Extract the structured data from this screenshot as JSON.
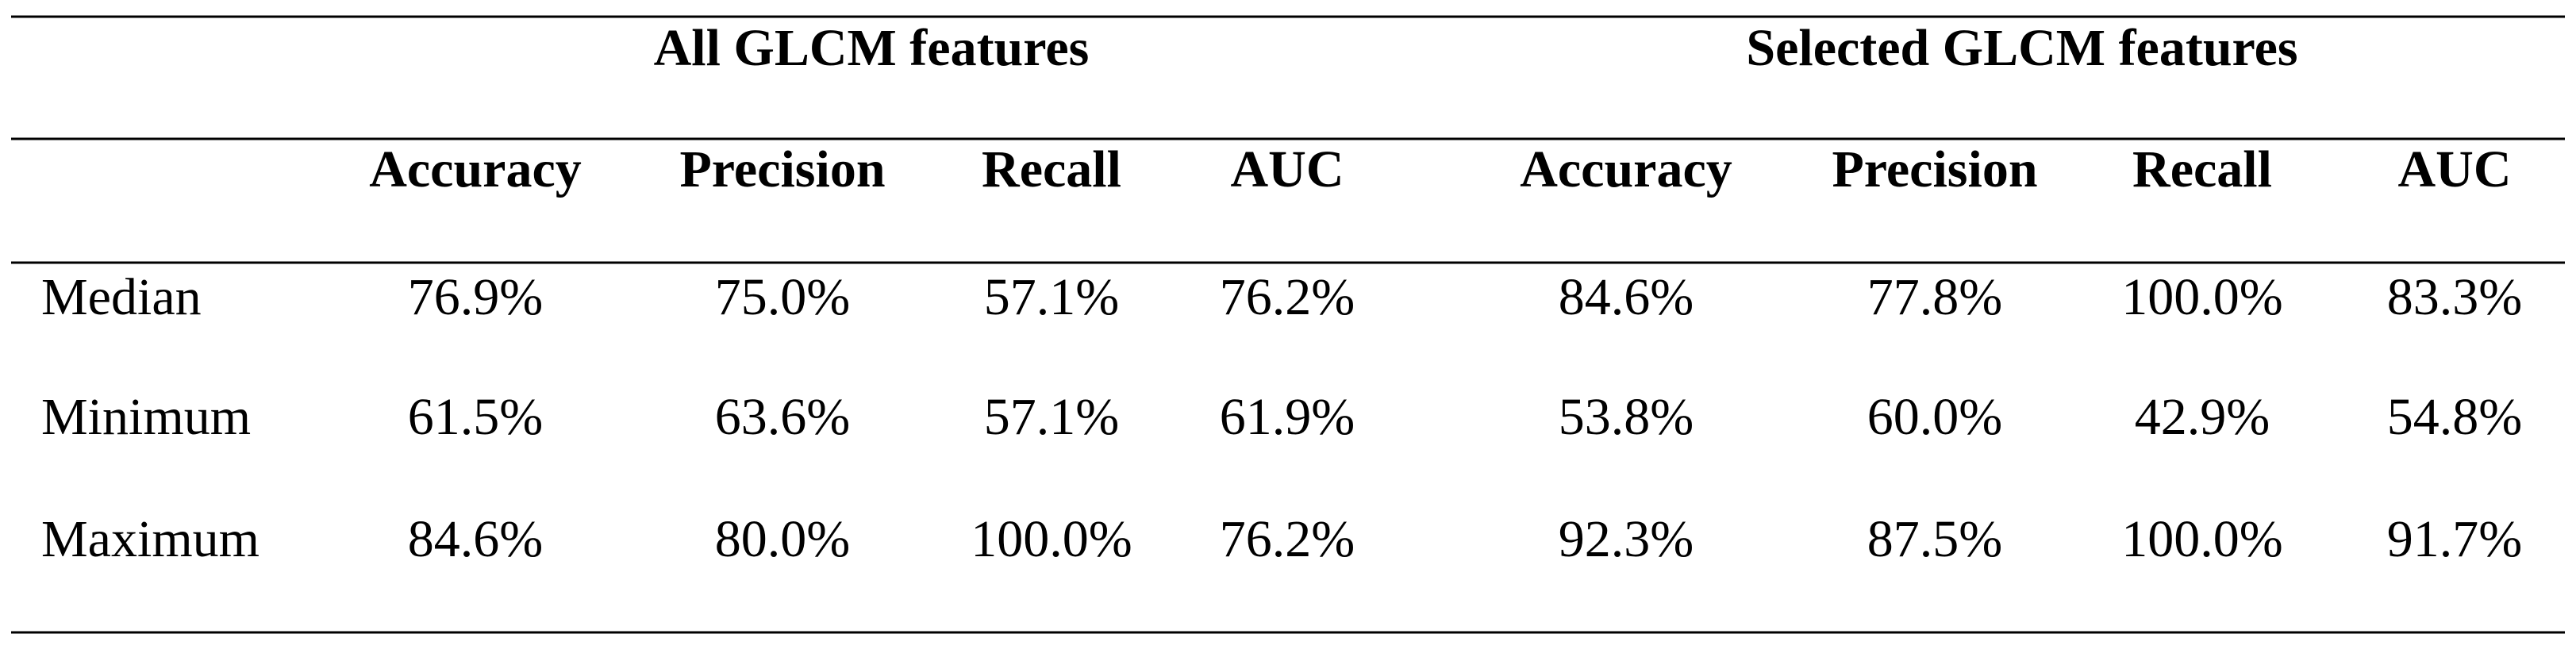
{
  "table": {
    "groups": [
      "All GLCM features",
      "Selected GLCM features"
    ],
    "columns": [
      "Accuracy",
      "Precision",
      "Recall",
      "AUC",
      "Accuracy",
      "Precision",
      "Recall",
      "AUC"
    ],
    "rows": [
      {
        "label": "Median",
        "values": [
          "76.9%",
          "75.0%",
          "57.1%",
          "76.2%",
          "84.6%",
          "77.8%",
          "100.0%",
          "83.3%"
        ]
      },
      {
        "label": "Minimum",
        "values": [
          "61.5%",
          "63.6%",
          "57.1%",
          "61.9%",
          "53.8%",
          "60.0%",
          "42.9%",
          "54.8%"
        ]
      },
      {
        "label": "Maximum",
        "values": [
          "84.6%",
          "80.0%",
          "100.0%",
          "76.2%",
          "92.3%",
          "87.5%",
          "100.0%",
          "91.7%"
        ]
      }
    ]
  }
}
